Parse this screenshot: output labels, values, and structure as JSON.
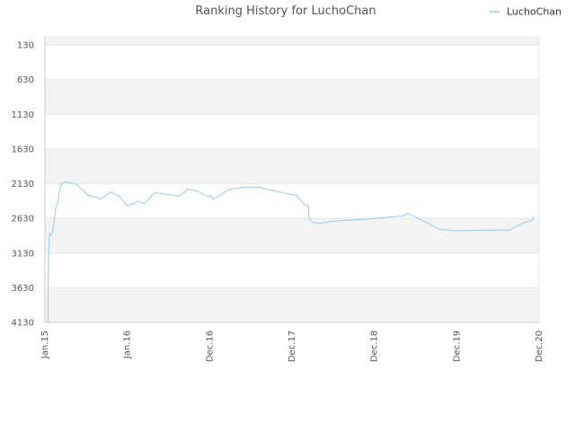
{
  "chart_data": {
    "type": "line",
    "title": "Ranking History for LuchoChan",
    "xlabel": "",
    "ylabel": "",
    "y_reversed": true,
    "ylim": [
      130,
      4130
    ],
    "y_ticks": [
      130,
      630,
      1130,
      1630,
      2130,
      2630,
      3130,
      3630,
      4130
    ],
    "x_ticks": [
      "Jan.15",
      "Jan.16",
      "Dec.16",
      "Dec.17",
      "Dec.18",
      "Dec.19",
      "Dec.20"
    ],
    "grid": "horizontal bands",
    "legend_position": "top-right",
    "colors": {
      "series": "#99c9ef",
      "band": "#f3f3f3",
      "grid": "#e6e6e6",
      "axis": "#cccccc"
    },
    "series": [
      {
        "name": "LuchoChan",
        "x": [
          0.32,
          0.33,
          0.34,
          0.36,
          0.37,
          0.39,
          0.4,
          0.42,
          0.43,
          0.45,
          0.47,
          0.5,
          0.6,
          0.8,
          0.95,
          1.0,
          1.1,
          1.35,
          1.45,
          1.5,
          1.65,
          1.75,
          1.8,
          2.1,
          3.3,
          4.5,
          5.8,
          6.3,
          6.8,
          7.8,
          8.5,
          9.2,
          9.7,
          10.3,
          11.4,
          13.9,
          14.9,
          15.9,
          16.5,
          17.05,
          17.15,
          17.5,
          18.1,
          19.2,
          20.8,
          22.2,
          23.7,
          25.0,
          26.1,
          26.95,
          27.4,
          27.4,
          27.8,
          28.6,
          30.0,
          33.6,
          36.8,
          37.2,
          37.6,
          38.6,
          41.0,
          42.6,
          46.3,
          48.2,
          49.8,
          50.6,
          50.7,
          50.72,
          50.75
        ],
        "y": [
          4130,
          4125,
          3610,
          3450,
          3200,
          3080,
          3060,
          3070,
          3020,
          2920,
          2860,
          2850,
          2870,
          2820,
          2680,
          2600,
          2500,
          2400,
          2280,
          2260,
          2150,
          2150,
          2120,
          2100,
          2140,
          2300,
          2350,
          2300,
          2250,
          2320,
          2450,
          2420,
          2380,
          2420,
          2260,
          2310,
          2210,
          2240,
          2290,
          2320,
          2300,
          2360,
          2300,
          2210,
          2180,
          2180,
          2230,
          2270,
          2300,
          2430,
          2450,
          2620,
          2690,
          2700,
          2670,
          2640,
          2600,
          2600,
          2560,
          2620,
          2790,
          2810,
          2800,
          2800,
          2690,
          2660,
          2640,
          2620,
          2600
        ]
      }
    ]
  }
}
